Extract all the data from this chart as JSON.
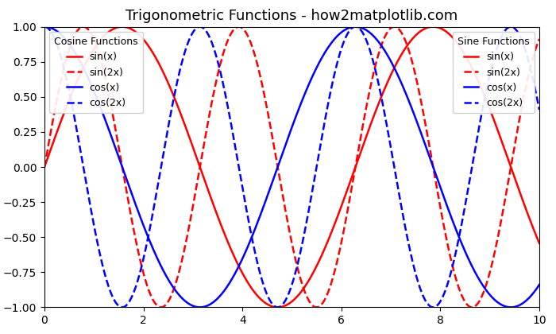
{
  "title": "Trigonometric Functions - how2matplotlib.com",
  "xmin": 0,
  "xmax": 10,
  "ymin": -1.0,
  "ymax": 1.0,
  "yticks": [
    -1.0,
    -0.75,
    -0.5,
    -0.25,
    0.0,
    0.25,
    0.5,
    0.75,
    1.0
  ],
  "xticks": [
    0,
    2,
    4,
    6,
    8,
    10
  ],
  "legend1_title": "Cosine Functions",
  "legend2_title": "Sine Functions",
  "legend1_loc": "upper left",
  "legend2_loc": "upper right",
  "lines": [
    {
      "label": "sin(x)",
      "color": "red",
      "linestyle": "solid",
      "func": "sin",
      "freq": 1
    },
    {
      "label": "sin(2x)",
      "color": "red",
      "linestyle": "dashed",
      "func": "sin",
      "freq": 2
    },
    {
      "label": "cos(x)",
      "color": "blue",
      "linestyle": "solid",
      "func": "cos",
      "freq": 1
    },
    {
      "label": "cos(2x)",
      "color": "blue",
      "linestyle": "dashed",
      "func": "cos",
      "freq": 2
    }
  ],
  "linewidth": 1.8,
  "title_fontsize": 13,
  "legend_fontsize": 9,
  "background_color": "#ffffff"
}
